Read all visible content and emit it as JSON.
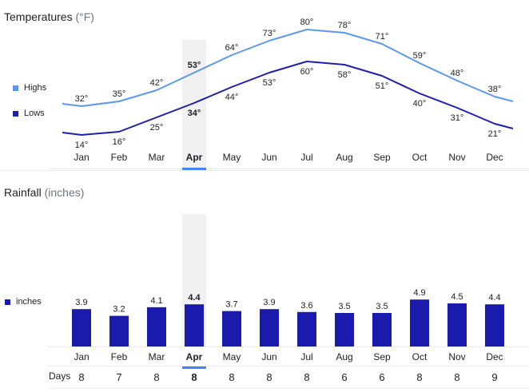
{
  "colors": {
    "highs": "#5b98ec",
    "lows": "#1e1eae",
    "rain": "#1a1aad",
    "selected_band": "#f1f1f1",
    "selected_marker": "#4285f4"
  },
  "selected_month": "Apr",
  "temperature": {
    "title": "Temperatures",
    "unit": "(°F)",
    "legend": {
      "highs": "Highs",
      "lows": "Lows"
    }
  },
  "rainfall": {
    "title": "Rainfall",
    "unit": "(inches)",
    "legend": "inches",
    "days_label": "Days"
  },
  "chart_data": [
    {
      "type": "line",
      "title": "Temperatures (°F)",
      "categories": [
        "Jan",
        "Feb",
        "Mar",
        "Apr",
        "May",
        "Jun",
        "Jul",
        "Aug",
        "Sep",
        "Oct",
        "Nov",
        "Dec"
      ],
      "series": [
        {
          "name": "Highs",
          "values": [
            32,
            35,
            42,
            53,
            64,
            73,
            80,
            78,
            71,
            59,
            48,
            38
          ]
        },
        {
          "name": "Lows",
          "values": [
            14,
            16,
            25,
            34,
            44,
            53,
            60,
            58,
            51,
            40,
            31,
            21
          ]
        }
      ],
      "value_suffix": "°",
      "legend_position": "left",
      "grid": false
    },
    {
      "type": "bar",
      "title": "Rainfall (inches)",
      "categories": [
        "Jan",
        "Feb",
        "Mar",
        "Apr",
        "May",
        "Jun",
        "Jul",
        "Aug",
        "Sep",
        "Oct",
        "Nov",
        "Dec"
      ],
      "series": [
        {
          "name": "inches",
          "values": [
            3.9,
            3.2,
            4.1,
            4.4,
            3.7,
            3.9,
            3.6,
            3.5,
            3.5,
            4.9,
            4.5,
            4.4
          ]
        }
      ],
      "days": [
        8,
        7,
        8,
        8,
        8,
        8,
        8,
        6,
        6,
        8,
        8,
        9
      ],
      "legend_position": "left",
      "grid": false
    }
  ]
}
